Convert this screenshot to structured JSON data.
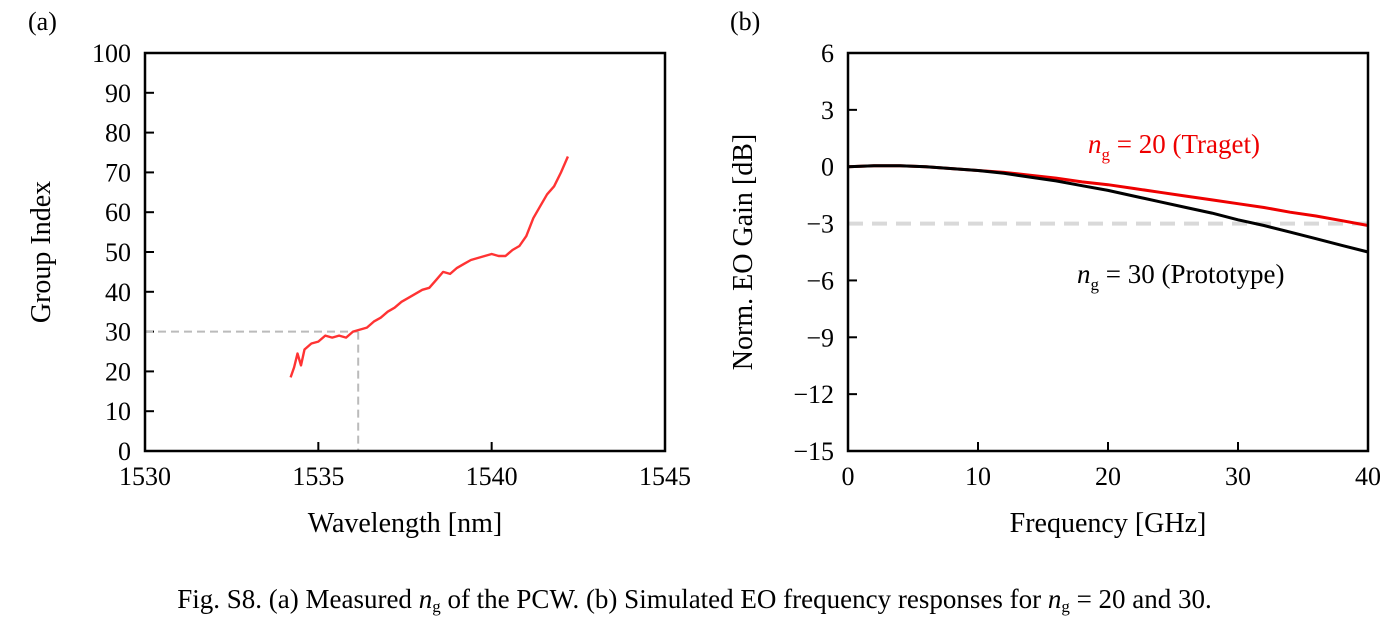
{
  "chart_data": [
    {
      "type": "line",
      "panel_label": "(a)",
      "xlabel": "Wavelength [nm]",
      "ylabel": "Group Index",
      "xlim": [
        1530,
        1545
      ],
      "ylim": [
        0,
        100
      ],
      "xticks": [
        1530,
        1535,
        1540,
        1545
      ],
      "yticks": [
        0,
        10,
        20,
        30,
        40,
        50,
        60,
        70,
        80,
        90,
        100
      ],
      "grid": false,
      "colors": {
        "series": "#ff3333",
        "guide": "#bbbbbb"
      },
      "series": [
        {
          "x": [
            1534.2,
            1534.3,
            1534.4,
            1534.5,
            1534.6,
            1534.8,
            1535.0,
            1535.2,
            1535.4,
            1535.6,
            1535.8,
            1536.0,
            1536.2,
            1536.4,
            1536.6,
            1536.8,
            1537.0,
            1537.2,
            1537.4,
            1537.6,
            1537.8,
            1538.0,
            1538.2,
            1538.4,
            1538.6,
            1538.8,
            1539.0,
            1539.2,
            1539.4,
            1539.6,
            1539.8,
            1540.0,
            1540.2,
            1540.4,
            1540.6,
            1540.8,
            1541.0,
            1541.2,
            1541.4,
            1541.6,
            1541.8,
            1542.0,
            1542.2
          ],
          "y": [
            18.5,
            21.0,
            24.5,
            21.5,
            25.5,
            27.0,
            27.5,
            29.0,
            28.5,
            29.0,
            28.5,
            30.0,
            30.5,
            31.0,
            32.5,
            33.5,
            35.0,
            36.0,
            37.5,
            38.5,
            39.5,
            40.5,
            41.0,
            43.0,
            45.0,
            44.5,
            46.0,
            47.0,
            48.0,
            48.5,
            49.0,
            49.5,
            49.0,
            49.0,
            50.5,
            51.5,
            54.0,
            58.5,
            61.5,
            64.5,
            66.5,
            70.0,
            74.0
          ]
        }
      ],
      "guide": {
        "x": 1536.15,
        "y": 30
      }
    },
    {
      "type": "line",
      "panel_label": "(b)",
      "xlabel": "Frequency [GHz]",
      "ylabel": "Norm. EO Gain [dB]",
      "xlim": [
        0,
        40
      ],
      "ylim": [
        -15,
        6
      ],
      "xticks": [
        0,
        10,
        20,
        30,
        40
      ],
      "yticks": [
        6,
        3,
        0,
        -3,
        -6,
        -9,
        -12,
        -15
      ],
      "ytick_labels": [
        "6",
        "3",
        "0",
        "−3",
        "−6",
        "−9",
        "−12",
        "−15"
      ],
      "grid": false,
      "reference_line": {
        "y": -3,
        "color": "#d9d9d9"
      },
      "series": [
        {
          "name_prefix": "n",
          "name_sub": "g",
          "name_suffix": " = 20 (Traget)",
          "color": "#ee0000",
          "x": [
            0,
            2,
            4,
            6,
            8,
            10,
            12,
            14,
            16,
            18,
            20,
            22,
            24,
            26,
            28,
            30,
            32,
            34,
            36,
            38,
            40
          ],
          "y": [
            0.0,
            0.05,
            0.05,
            0.0,
            -0.1,
            -0.2,
            -0.3,
            -0.45,
            -0.6,
            -0.8,
            -0.95,
            -1.15,
            -1.35,
            -1.55,
            -1.75,
            -1.95,
            -2.15,
            -2.4,
            -2.6,
            -2.85,
            -3.1
          ]
        },
        {
          "name_prefix": "n",
          "name_sub": "g",
          "name_suffix": " = 30 (Prototype)",
          "color": "#000000",
          "x": [
            0,
            2,
            4,
            6,
            8,
            10,
            12,
            14,
            16,
            18,
            20,
            22,
            24,
            26,
            28,
            30,
            32,
            34,
            36,
            38,
            40
          ],
          "y": [
            0.0,
            0.05,
            0.05,
            0.0,
            -0.1,
            -0.2,
            -0.35,
            -0.55,
            -0.75,
            -1.0,
            -1.25,
            -1.55,
            -1.85,
            -2.15,
            -2.45,
            -2.8,
            -3.1,
            -3.45,
            -3.8,
            -4.15,
            -4.5
          ]
        }
      ]
    }
  ],
  "caption": {
    "part1": "Fig. S8. (a) Measured ",
    "sym1": "n",
    "sub1": "g",
    "part2": " of the PCW. (b) Simulated EO frequency responses for ",
    "sym2": "n",
    "sub2": "g",
    "part3": " = 20 and 30."
  }
}
